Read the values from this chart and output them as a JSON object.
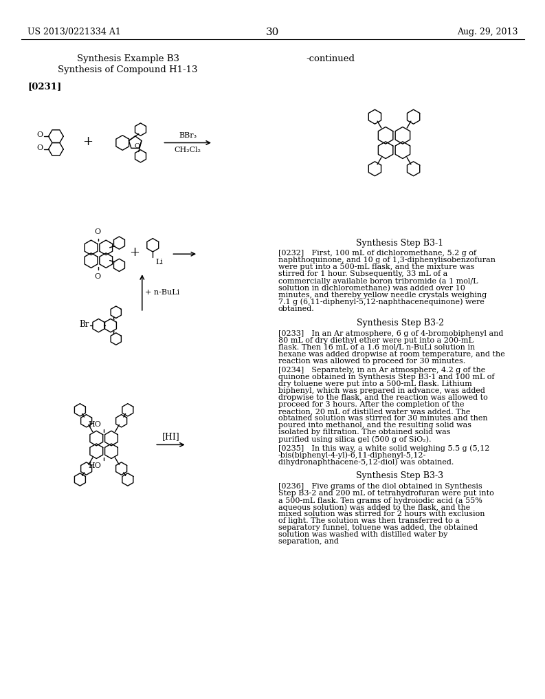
{
  "page_header_left": "US 2013/0221334 A1",
  "page_header_right": "Aug. 29, 2013",
  "page_number": "30",
  "section_title1": "Synthesis Example B3",
  "section_title2": "Synthesis of Compound H1-13",
  "paragraph_label": "[0231]",
  "continued_label": "-continued",
  "synthesis_step_b3_1_title": "Synthesis Step B3-1",
  "synthesis_step_b3_2_title": "Synthesis Step B3-2",
  "synthesis_step_b3_3_title": "Synthesis Step B3-3",
  "text_0232": "[0232] First, 100 mL of dichloromethane, 5.2 g of naphthoquinone, and 10 g of 1,3-diphenylisobenzofuran were put into a 500-mL flask, and the mixture was stirred for 1 hour. Subsequently, 33 mL of a commercially available boron tribromide (a 1 mol/L solution in dichloromethane) was added over 10 minutes, and thereby yellow needle crystals weighing 7.1 g (6,11-diphenyl-5,12-naphthacenequinone) were obtained.",
  "text_0233": "[0233] In an Ar atmosphere, 6 g of 4-bromobiphenyl and 80 mL of dry diethyl ether were put into a 200-mL flask. Then 16 mL of a 1.6 mol/L n-BuLi solution in hexane was added dropwise at room temperature, and the reaction was allowed to proceed for 30 minutes.",
  "text_0234": "[0234] Separately, in an Ar atmosphere, 4.2 g of the quinone obtained in Synthesis Step B3-1 and 100 mL of dry toluene were put into a 500-mL flask. Lithium biphenyl, which was prepared in advance, was added dropwise to the flask, and the reaction was allowed to proceed for 3 hours. After the completion of the reaction, 20 mL of distilled water was added. The obtained solution was stirred for 30 minutes and then poured into methanol, and the resulting solid was isolated by filtration. The obtained solid was purified using silica gel (500 g of SiO₂).",
  "text_0235": "[0235] In this way, a white solid weighing 5.5 g (5,12-bis(biphenyl-4-yl)-6,11-diphenyl-5,12-dihydronaphthacene-5,12-diol) was obtained.",
  "text_0236": "[0236] Five grams of the diol obtained in Synthesis Step B3-2 and 200 mL of tetrahydrofuran were put into a 500-mL flask. Ten grams of hydroiodic acid (a 55% aqueous solution) was added to the flask, and the mixed solution was stirred for 2 hours with exclusion of light. The solution was then transferred to a separatory funnel, toluene was added, the obtained solution was washed with distilled water by separation, and",
  "background_color": "#ffffff",
  "text_color": "#000000"
}
